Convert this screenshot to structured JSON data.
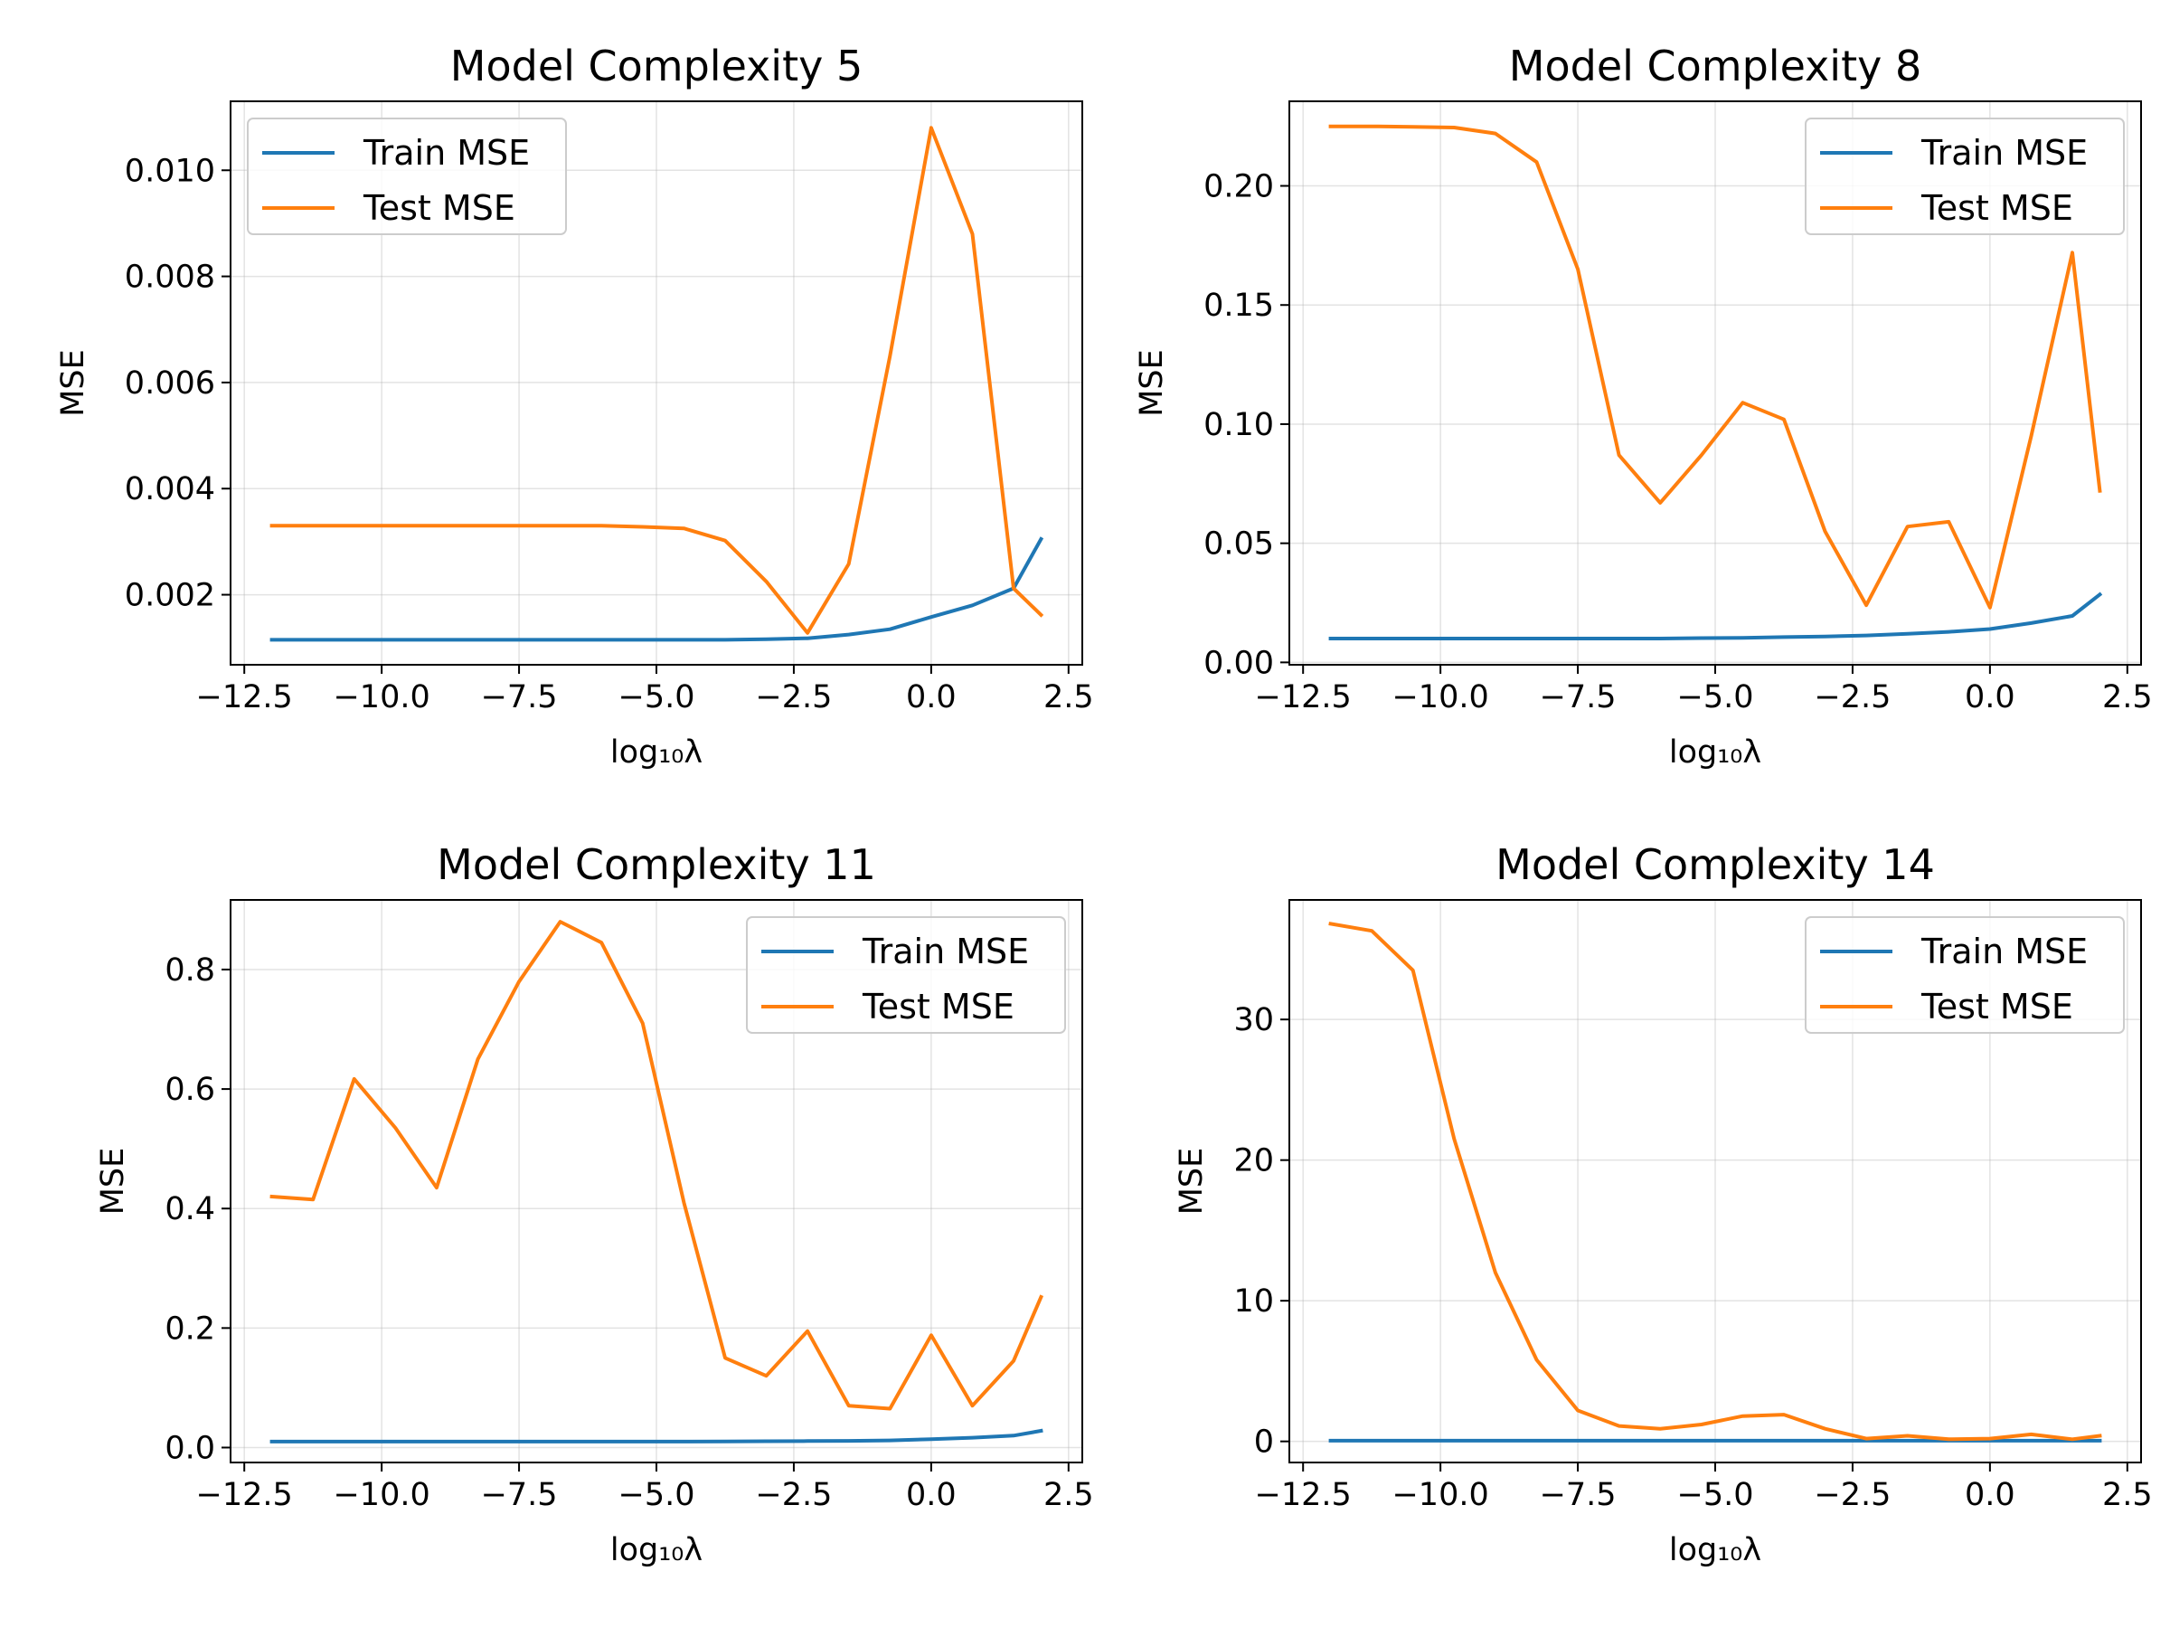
{
  "colors": {
    "train": "#1f77b4",
    "test": "#ff7f0e"
  },
  "chart_data": [
    {
      "type": "line",
      "title": "Model Complexity 5",
      "xlabel": "log₁₀λ",
      "ylabel": "MSE",
      "xlim": [
        -12.75,
        2.75
      ],
      "ylim": [
        0.00068,
        0.0113
      ],
      "xticks": [
        -12.5,
        -10.0,
        -7.5,
        -5.0,
        -2.5,
        0.0,
        2.5
      ],
      "xtick_labels": [
        "−12.5",
        "−10.0",
        "−7.5",
        "−5.0",
        "−2.5",
        "0.0",
        "2.5"
      ],
      "yticks": [
        0.002,
        0.004,
        0.006,
        0.008,
        0.01
      ],
      "ytick_labels": [
        "0.002",
        "0.004",
        "0.006",
        "0.008",
        "0.010"
      ],
      "grid": true,
      "legend_position": "top-left",
      "x": [
        -12.0,
        -11.25,
        -10.5,
        -9.75,
        -9.0,
        -8.25,
        -7.5,
        -6.75,
        -6.0,
        -5.25,
        -4.5,
        -3.75,
        -3.0,
        -2.25,
        -1.5,
        -0.75,
        0.0,
        0.75,
        1.5,
        2.0
      ],
      "series": [
        {
          "name": "Train MSE",
          "color": "#1f77b4",
          "values": [
            0.00115,
            0.00115,
            0.00115,
            0.00115,
            0.00115,
            0.00115,
            0.00115,
            0.00115,
            0.00115,
            0.00115,
            0.00115,
            0.00115,
            0.00116,
            0.00118,
            0.00125,
            0.00135,
            0.00158,
            0.0018,
            0.00212,
            0.00305
          ]
        },
        {
          "name": "Test MSE",
          "color": "#ff7f0e",
          "values": [
            0.0033,
            0.0033,
            0.0033,
            0.0033,
            0.0033,
            0.0033,
            0.0033,
            0.0033,
            0.0033,
            0.00328,
            0.00325,
            0.00302,
            0.00225,
            0.00128,
            0.00258,
            0.0065,
            0.0108,
            0.0088,
            0.00212,
            0.00162
          ]
        }
      ]
    },
    {
      "type": "line",
      "title": "Model Complexity 8",
      "xlabel": "log₁₀λ",
      "ylabel": "MSE",
      "xlim": [
        -12.75,
        2.75
      ],
      "ylim": [
        -0.001,
        0.2355
      ],
      "xticks": [
        -12.5,
        -10.0,
        -7.5,
        -5.0,
        -2.5,
        0.0,
        2.5
      ],
      "xtick_labels": [
        "−12.5",
        "−10.0",
        "−7.5",
        "−5.0",
        "−2.5",
        "0.0",
        "2.5"
      ],
      "yticks": [
        0.0,
        0.05,
        0.1,
        0.15,
        0.2
      ],
      "ytick_labels": [
        "0.00",
        "0.05",
        "0.10",
        "0.15",
        "0.20"
      ],
      "grid": true,
      "legend_position": "top-right",
      "x": [
        -12.0,
        -11.25,
        -10.5,
        -9.75,
        -9.0,
        -8.25,
        -7.5,
        -6.75,
        -6.0,
        -5.25,
        -4.5,
        -3.75,
        -3.0,
        -2.25,
        -1.5,
        -0.75,
        0.0,
        0.75,
        1.5,
        2.0
      ],
      "series": [
        {
          "name": "Train MSE",
          "color": "#1f77b4",
          "values": [
            0.01,
            0.01,
            0.01,
            0.01,
            0.01,
            0.01,
            0.01,
            0.01,
            0.01,
            0.0102,
            0.0103,
            0.0106,
            0.0109,
            0.0113,
            0.012,
            0.0128,
            0.014,
            0.0165,
            0.0195,
            0.0285
          ]
        },
        {
          "name": "Test MSE",
          "color": "#ff7f0e",
          "values": [
            0.225,
            0.225,
            0.2248,
            0.2245,
            0.222,
            0.21,
            0.165,
            0.087,
            0.067,
            0.087,
            0.109,
            0.102,
            0.055,
            0.024,
            0.057,
            0.059,
            0.023,
            0.095,
            0.172,
            0.072
          ]
        }
      ]
    },
    {
      "type": "line",
      "title": "Model Complexity 11",
      "xlabel": "log₁₀λ",
      "ylabel": "MSE",
      "xlim": [
        -12.75,
        2.75
      ],
      "ylim": [
        -0.025,
        0.9165
      ],
      "xticks": [
        -12.5,
        -10.0,
        -7.5,
        -5.0,
        -2.5,
        0.0,
        2.5
      ],
      "xtick_labels": [
        "−12.5",
        "−10.0",
        "−7.5",
        "−5.0",
        "−2.5",
        "0.0",
        "2.5"
      ],
      "yticks": [
        0.0,
        0.2,
        0.4,
        0.6,
        0.8
      ],
      "ytick_labels": [
        "0.0",
        "0.2",
        "0.4",
        "0.6",
        "0.8"
      ],
      "grid": true,
      "legend_position": "top-right",
      "x": [
        -12.0,
        -11.25,
        -10.5,
        -9.75,
        -9.0,
        -8.25,
        -7.5,
        -6.75,
        -6.0,
        -5.25,
        -4.5,
        -3.75,
        -3.0,
        -2.25,
        -1.5,
        -0.75,
        0.0,
        0.75,
        1.5,
        2.0
      ],
      "series": [
        {
          "name": "Train MSE",
          "color": "#1f77b4",
          "values": [
            0.01,
            0.01,
            0.01,
            0.01,
            0.01,
            0.01,
            0.01,
            0.01,
            0.01,
            0.01,
            0.01,
            0.0102,
            0.0105,
            0.0108,
            0.0112,
            0.012,
            0.014,
            0.0165,
            0.02,
            0.028
          ]
        },
        {
          "name": "Test MSE",
          "color": "#ff7f0e",
          "values": [
            0.42,
            0.415,
            0.617,
            0.535,
            0.435,
            0.65,
            0.78,
            0.88,
            0.845,
            0.71,
            0.41,
            0.15,
            0.12,
            0.195,
            0.07,
            0.065,
            0.188,
            0.07,
            0.145,
            0.252
          ]
        }
      ]
    },
    {
      "type": "line",
      "title": "Model Complexity 14",
      "xlabel": "log₁₀λ",
      "ylabel": "MSE",
      "xlim": [
        -12.75,
        2.75
      ],
      "ylim": [
        -1.5,
        38.5
      ],
      "xticks": [
        -12.5,
        -10.0,
        -7.5,
        -5.0,
        -2.5,
        0.0,
        2.5
      ],
      "xtick_labels": [
        "−12.5",
        "−10.0",
        "−7.5",
        "−5.0",
        "−2.5",
        "0.0",
        "2.5"
      ],
      "yticks": [
        0,
        10,
        20,
        30
      ],
      "ytick_labels": [
        "0",
        "10",
        "20",
        "30"
      ],
      "grid": true,
      "legend_position": "top-right",
      "x": [
        -12.0,
        -11.25,
        -10.5,
        -9.75,
        -9.0,
        -8.25,
        -7.5,
        -6.75,
        -6.0,
        -5.25,
        -4.5,
        -3.75,
        -3.0,
        -2.25,
        -1.5,
        -0.75,
        0.0,
        0.75,
        1.5,
        2.0
      ],
      "series": [
        {
          "name": "Train MSE",
          "color": "#1f77b4",
          "values": [
            0.05,
            0.05,
            0.05,
            0.05,
            0.05,
            0.05,
            0.05,
            0.05,
            0.05,
            0.05,
            0.05,
            0.05,
            0.05,
            0.05,
            0.05,
            0.05,
            0.05,
            0.05,
            0.05,
            0.05
          ]
        },
        {
          "name": "Test MSE",
          "color": "#ff7f0e",
          "values": [
            36.8,
            36.3,
            33.5,
            21.5,
            12.0,
            5.8,
            2.2,
            1.1,
            0.9,
            1.2,
            1.8,
            1.9,
            0.9,
            0.2,
            0.4,
            0.15,
            0.2,
            0.5,
            0.15,
            0.4
          ]
        }
      ]
    }
  ]
}
